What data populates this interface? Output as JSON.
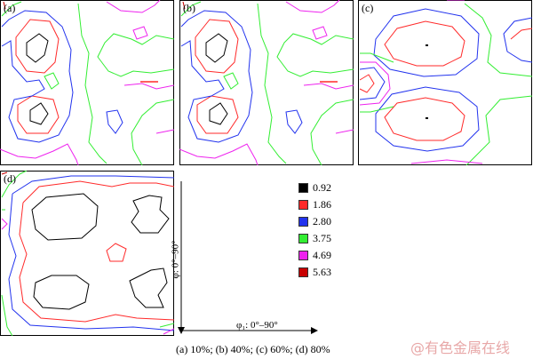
{
  "panels": [
    {
      "id": "a",
      "label": "(a)"
    },
    {
      "id": "b",
      "label": "(b)"
    },
    {
      "id": "c",
      "label": "(c)"
    },
    {
      "id": "d",
      "label": "(d)"
    }
  ],
  "legend": [
    {
      "value": "0.92",
      "color": "#000000"
    },
    {
      "value": "1.86",
      "color": "#ff2a2a"
    },
    {
      "value": "2.80",
      "color": "#2233ee"
    },
    {
      "value": "3.75",
      "color": "#33ee33"
    },
    {
      "value": "4.69",
      "color": "#ee22ee"
    },
    {
      "value": "5.63",
      "color": "#c80000"
    }
  ],
  "axes": {
    "x_label": "φ₁: 0°–90°",
    "y_label": "φ: 0°–90°"
  },
  "caption": "(a) 10%; (b) 40%; (c) 60%; (d)  80%",
  "watermark": "@有色金属在线"
}
